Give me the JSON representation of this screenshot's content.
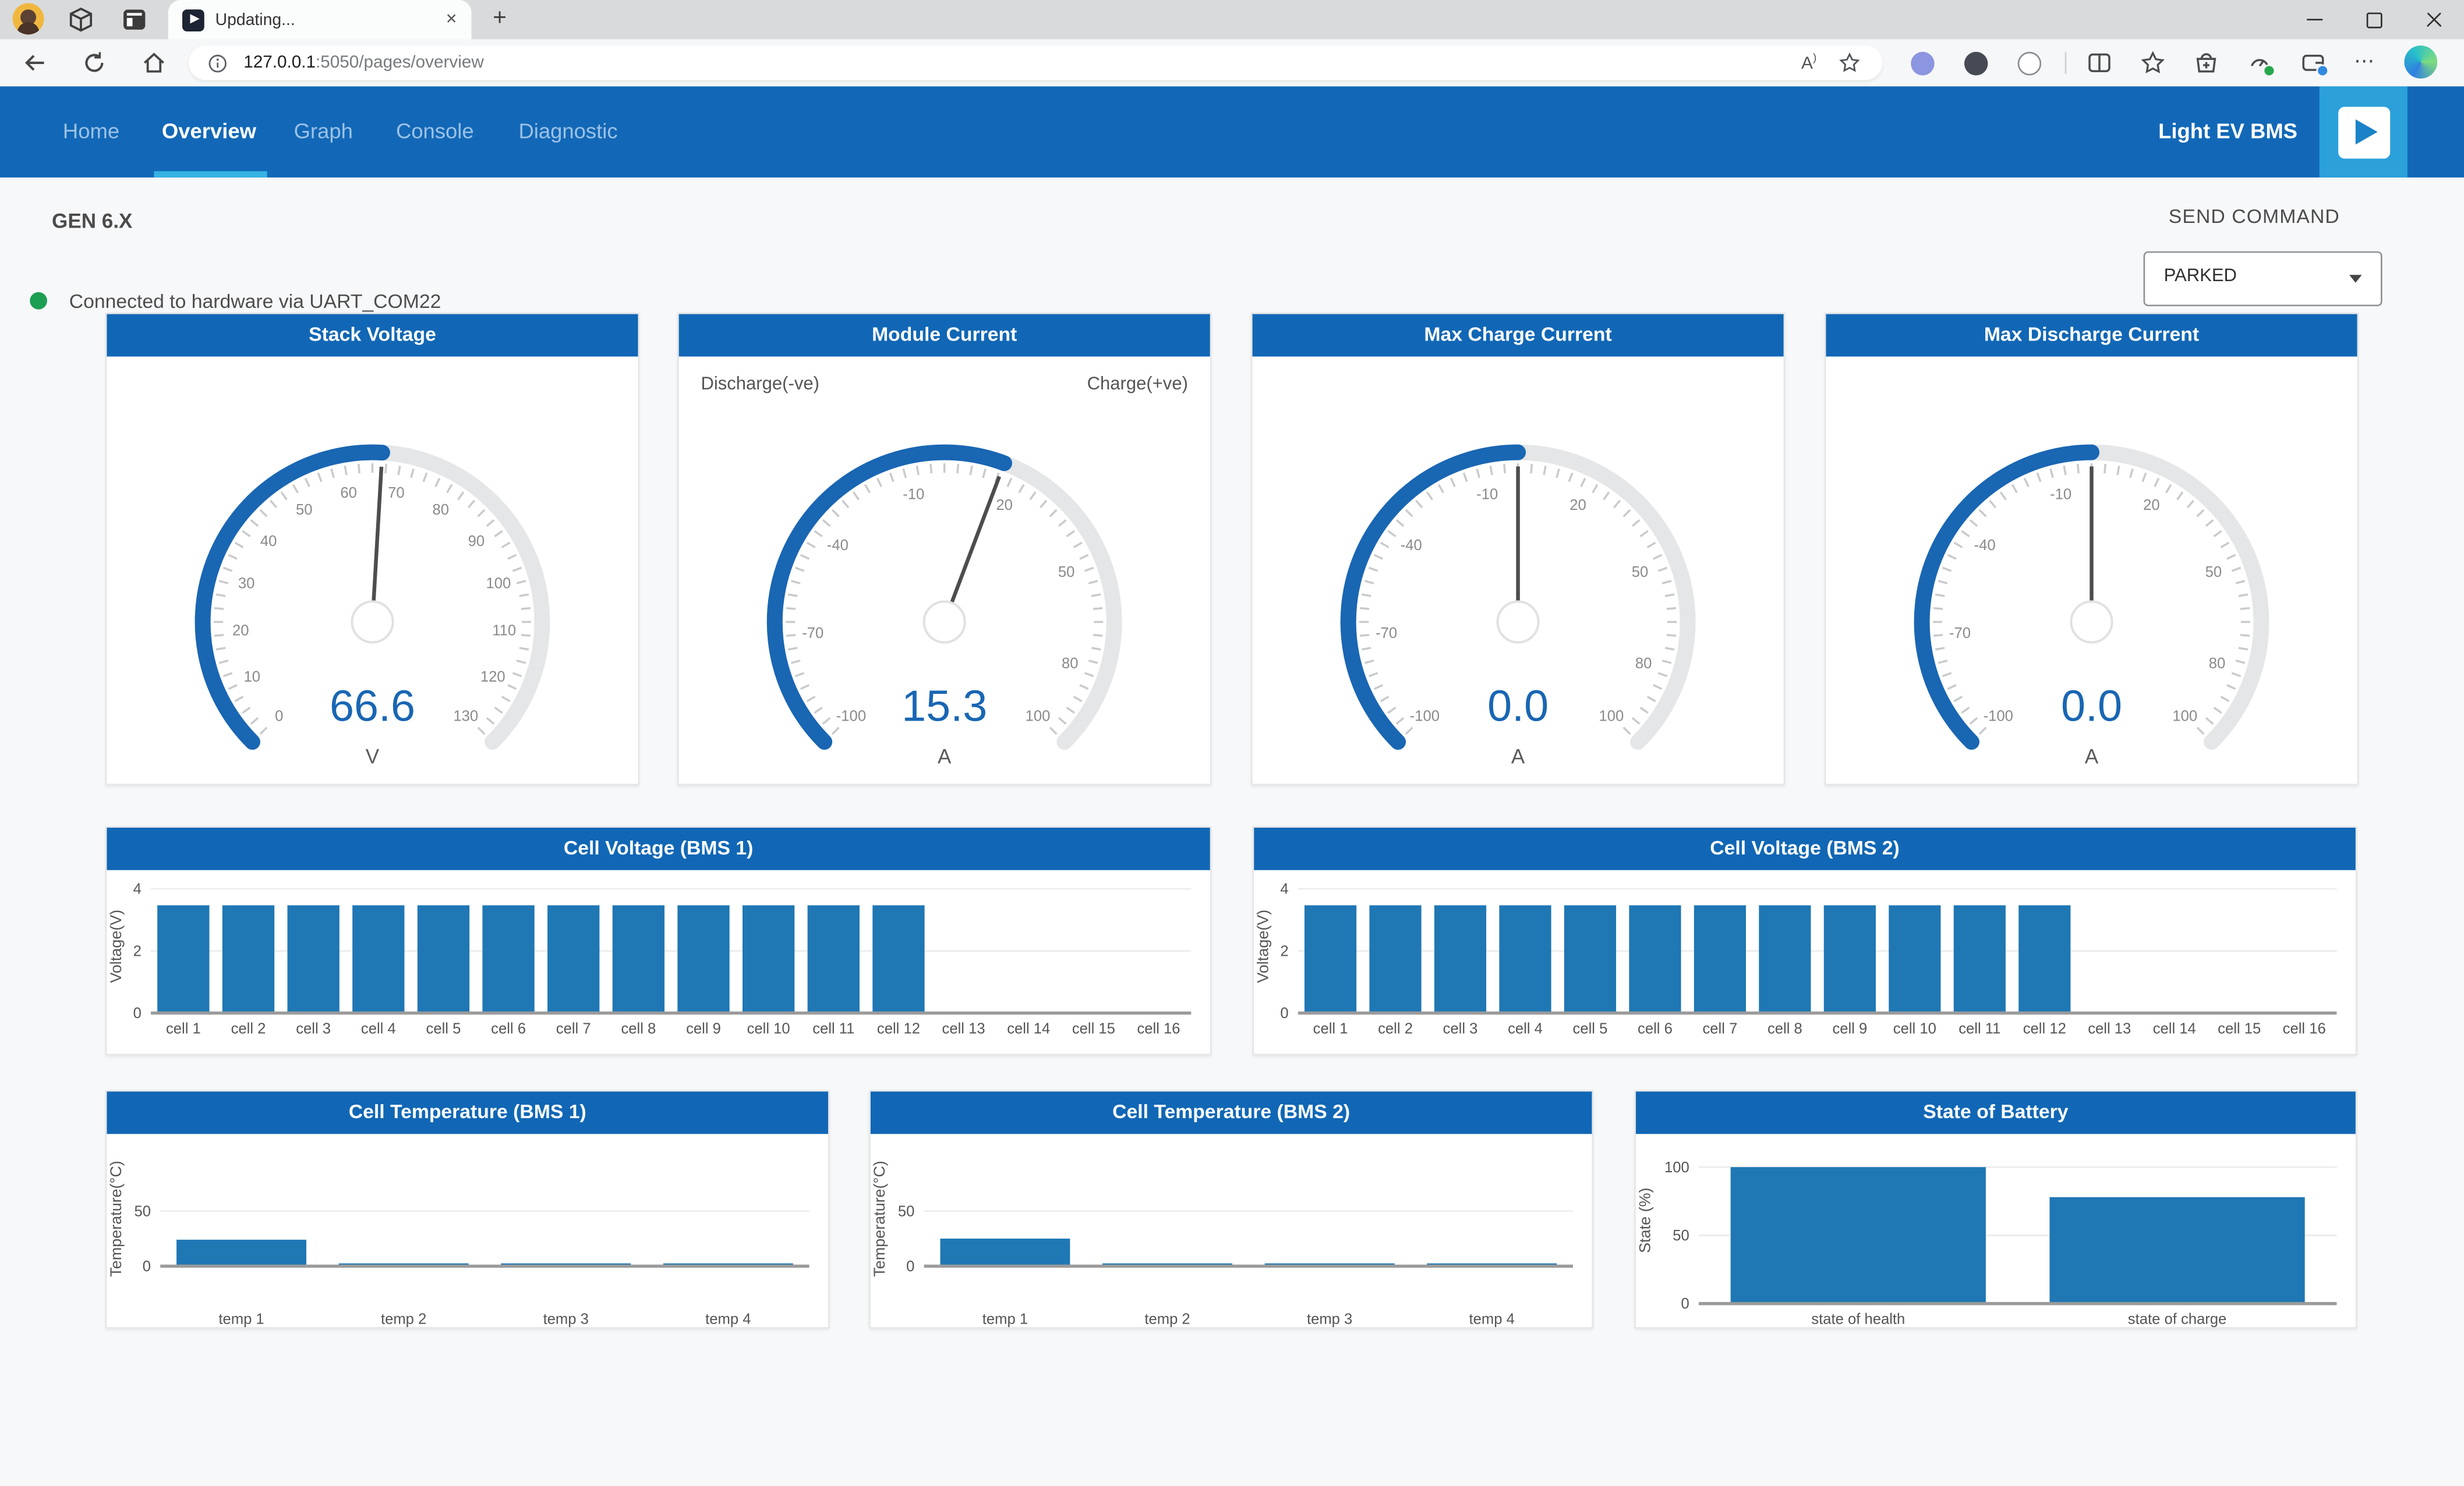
{
  "browser": {
    "tab_title": "Updating...",
    "url_host": "127.0.0.1",
    "url_path": ":5050/pages/overview"
  },
  "nav": {
    "items": [
      {
        "label": "Home",
        "active": false
      },
      {
        "label": "Overview",
        "active": true
      },
      {
        "label": "Graph",
        "active": false
      },
      {
        "label": "Console",
        "active": false
      },
      {
        "label": "Diagnostic",
        "active": false
      }
    ],
    "brand": "Light EV BMS"
  },
  "status": {
    "generation": "GEN 6.X",
    "connection": "Connected to hardware via UART_COM22"
  },
  "command": {
    "label": "SEND COMMAND",
    "selected": "PARKED"
  },
  "colors": {
    "accent": "#1167b5",
    "accent_light": "#36b3e2",
    "gauge_blue": "#1966b3",
    "gauge_track": "#e4e6e8",
    "bar_blue": "#1f77b4",
    "status_green": "#1c9e53"
  },
  "chart_data": [
    {
      "type": "gauge",
      "title": "Stack Voltage",
      "value": "66.6",
      "unit": "V",
      "min": 0,
      "max": 130,
      "tick_labels": [
        0,
        10,
        20,
        30,
        40,
        50,
        60,
        70,
        80,
        90,
        100,
        110,
        120,
        130
      ]
    },
    {
      "type": "gauge",
      "title": "Module Current",
      "value": "15.3",
      "unit": "A",
      "min": -100,
      "max": 100,
      "tick_labels": [
        -100,
        -70,
        -40,
        -10,
        20,
        50,
        80,
        100
      ],
      "annotation_left": "Discharge(-ve)",
      "annotation_right": "Charge(+ve)"
    },
    {
      "type": "gauge",
      "title": "Max Charge Current",
      "value": "0.0",
      "unit": "A",
      "min": -100,
      "max": 100,
      "tick_labels": [
        -100,
        -70,
        -40,
        -10,
        20,
        50,
        80,
        100
      ]
    },
    {
      "type": "gauge",
      "title": "Max Discharge Current",
      "value": "0.0",
      "unit": "A",
      "min": -100,
      "max": 100,
      "tick_labels": [
        -100,
        -70,
        -40,
        -10,
        20,
        50,
        80,
        100
      ]
    },
    {
      "type": "bar",
      "title": "Cell Voltage (BMS 1)",
      "ylabel": "Voltage(V)",
      "yticks": [
        0,
        2,
        4
      ],
      "ylim": [
        0,
        4.3
      ],
      "categories": [
        "cell 1",
        "cell 2",
        "cell 3",
        "cell 4",
        "cell 5",
        "cell 6",
        "cell 7",
        "cell 8",
        "cell 9",
        "cell 10",
        "cell 11",
        "cell 12",
        "cell 13",
        "cell 14",
        "cell 15",
        "cell 16"
      ],
      "values": [
        3.47,
        3.47,
        3.47,
        3.47,
        3.47,
        3.47,
        3.47,
        3.47,
        3.47,
        3.47,
        3.47,
        3.47,
        0,
        0,
        0,
        0
      ],
      "layout": {
        "t": 6,
        "b": 28,
        "l": 28
      }
    },
    {
      "type": "bar",
      "title": "Cell Voltage (BMS 2)",
      "ylabel": "Voltage(V)",
      "yticks": [
        0,
        2,
        4
      ],
      "ylim": [
        0,
        4.3
      ],
      "categories": [
        "cell 1",
        "cell 2",
        "cell 3",
        "cell 4",
        "cell 5",
        "cell 6",
        "cell 7",
        "cell 8",
        "cell 9",
        "cell 10",
        "cell 11",
        "cell 12",
        "cell 13",
        "cell 14",
        "cell 15",
        "cell 16"
      ],
      "values": [
        3.47,
        3.47,
        3.47,
        3.47,
        3.47,
        3.47,
        3.47,
        3.47,
        3.47,
        3.47,
        3.47,
        3.47,
        0,
        0,
        0,
        0
      ],
      "layout": {
        "t": 6,
        "b": 28,
        "l": 28
      }
    },
    {
      "type": "bar",
      "title": "Cell Temperature (BMS 1)",
      "ylabel": "Temperature(°C)",
      "yticks": [
        0,
        50
      ],
      "ylim": [
        -34,
        120
      ],
      "categories": [
        "temp 1",
        "temp 2",
        "temp 3",
        "temp 4"
      ],
      "values": [
        24,
        2.5,
        2.5,
        2.5
      ],
      "layout": {
        "t": 0,
        "b": 17,
        "l": 34
      }
    },
    {
      "type": "bar",
      "title": "Cell Temperature (BMS 2)",
      "ylabel": "Temperature(°C)",
      "yticks": [
        0,
        50
      ],
      "ylim": [
        -34,
        120
      ],
      "categories": [
        "temp 1",
        "temp 2",
        "temp 3",
        "temp 4"
      ],
      "values": [
        25,
        2.5,
        2.5,
        2.5
      ],
      "layout": {
        "t": 0,
        "b": 17,
        "l": 34
      }
    },
    {
      "type": "bar",
      "title": "State of Battery",
      "ylabel": "State (%)",
      "yticks": [
        0,
        50,
        100
      ],
      "ylim": [
        0,
        122
      ],
      "categories": [
        "state of health",
        "state of charge"
      ],
      "values": [
        100,
        78
      ],
      "layout": {
        "t": 2,
        "b": 17,
        "l": 40
      }
    }
  ]
}
